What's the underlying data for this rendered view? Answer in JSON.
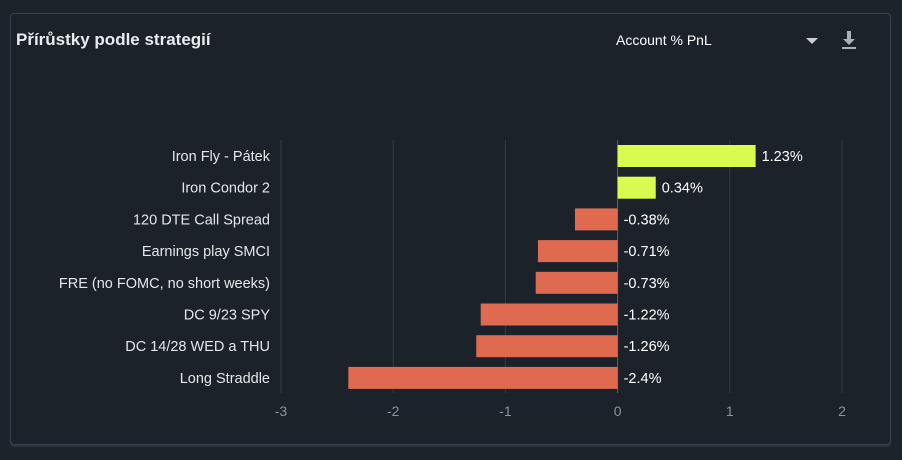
{
  "header": {
    "title": "Přírůstky podle strategií",
    "metric_select_value": "Account % PnL",
    "download_icon": "download-icon",
    "dropdown_icon": "chevron-down-icon"
  },
  "colors": {
    "positive": "#d9fb4f",
    "negative": "#e06a4f",
    "grid": "#333c45",
    "zero_line": "#5b646d"
  },
  "chart_data": {
    "type": "bar",
    "orientation": "horizontal",
    "title": "Přírůstky podle strategií",
    "categories": [
      "Iron Fly - Pátek",
      "Iron Condor 2",
      "120 DTE Call Spread",
      "Earnings play SMCI",
      "FRE (no FOMC, no short weeks)",
      "DC 9/23 SPY",
      "DC 14/28 WED a THU",
      "Long Straddle"
    ],
    "values": [
      1.23,
      0.34,
      -0.38,
      -0.71,
      -0.73,
      -1.22,
      -1.26,
      -2.4
    ],
    "value_labels": [
      "1.23%",
      "0.34%",
      "-0.38%",
      "-0.71%",
      "-0.73%",
      "-1.22%",
      "-1.26%",
      "-2.4%"
    ],
    "xlim": [
      -3,
      2
    ],
    "x_ticks": [
      -3,
      -2,
      -1,
      0,
      1,
      2
    ],
    "x_tick_labels": [
      "-3",
      "-2",
      "-1",
      "0",
      "1",
      "2"
    ],
    "xlabel": "",
    "ylabel": "",
    "grid": "vertical"
  }
}
